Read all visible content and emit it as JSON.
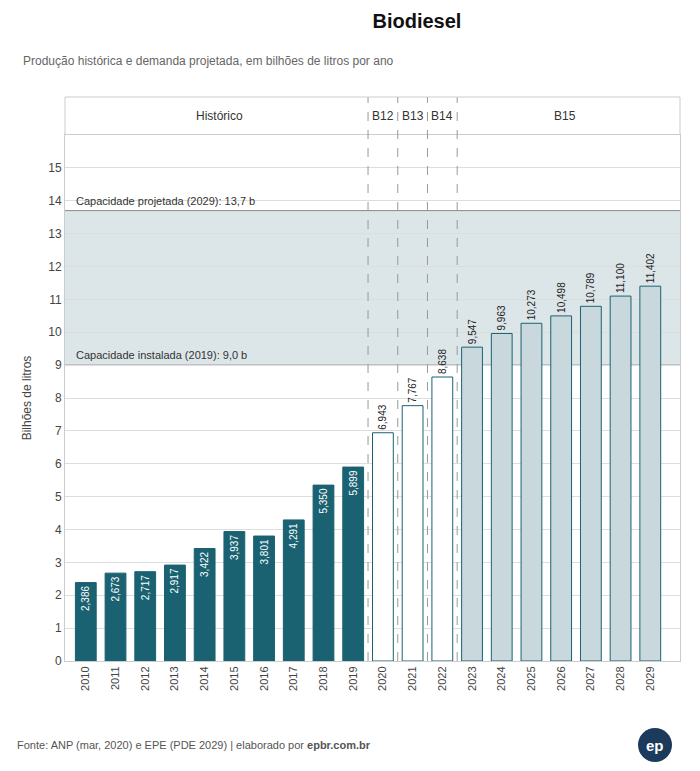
{
  "chart_data": {
    "type": "bar",
    "title": "Biodiesel",
    "subtitle": "Produção histórica e demanda projetada, em bilhões de litros por ano",
    "ylabel": "Bilhões de litros",
    "source": "Fonte: ANP (mar, 2020) e EPE (PDE 2029) | elaborado por ",
    "source_bold": "epbr.com.br",
    "logo_text": "ep",
    "x": [
      2010,
      2011,
      2012,
      2013,
      2014,
      2015,
      2016,
      2017,
      2018,
      2019,
      2020,
      2021,
      2022,
      2023,
      2024,
      2025,
      2026,
      2027,
      2028,
      2029
    ],
    "values": [
      2.386,
      2.673,
      2.717,
      2.917,
      3.422,
      3.937,
      3.801,
      4.291,
      5.35,
      5.899,
      6.943,
      7.767,
      8.638,
      9.547,
      9.963,
      10.273,
      10.498,
      10.789,
      11.1,
      11.402
    ],
    "value_labels": [
      "2,386",
      "2,673",
      "2,717",
      "2,917",
      "3,422",
      "3,937",
      "3,801",
      "4,291",
      "5,350",
      "5,899",
      "6,943",
      "7,767",
      "8,638",
      "9,547",
      "9,963",
      "10,273",
      "10,498",
      "10,789",
      "11,100",
      "11,402"
    ],
    "data_labels": true,
    "colors": [
      "#1a6272",
      "#1a6272",
      "#1a6272",
      "#1a6272",
      "#1a6272",
      "#1a6272",
      "#1a6272",
      "#1a6272",
      "#1a6272",
      "#1a6272",
      "#ffffff",
      "#ffffff",
      "#ffffff",
      "#c8d8dc",
      "#c8d8dc",
      "#c8d8dc",
      "#c8d8dc",
      "#c8d8dc",
      "#c8d8dc",
      "#c8d8dc"
    ],
    "xlim": [
      2009.3,
      2030.0
    ],
    "xticks": [
      2010,
      2011,
      2012,
      2013,
      2014,
      2015,
      2016,
      2017,
      2018,
      2019,
      2020,
      2021,
      2022,
      2023,
      2024,
      2025,
      2026,
      2027,
      2028,
      2029
    ],
    "ylim": [
      0,
      16
    ],
    "yticks": [
      0,
      1,
      2,
      3,
      4,
      5,
      6,
      7,
      8,
      9,
      10,
      11,
      12,
      13,
      14,
      15
    ],
    "grid": "y",
    "band": {
      "y0": 9.0,
      "y1": 13.7,
      "color": "#dce6e9"
    },
    "annotations": [
      {
        "text": "Capacidade instalada (2019): 9,0 b",
        "y": 9.0
      },
      {
        "text": "Capacidade projetada (2029): 13,7 b",
        "y": 13.7
      }
    ],
    "sections": [
      {
        "label": "Histórico",
        "x0": 2009.5,
        "x1": 2019.5
      },
      {
        "label": "B12",
        "x0": 2019.5,
        "x1": 2020.5
      },
      {
        "label": "B13",
        "x0": 2020.5,
        "x1": 2021.5
      },
      {
        "label": "B14",
        "x0": 2021.5,
        "x1": 2022.5
      },
      {
        "label": "B15",
        "x0": 2022.5,
        "x1": 2029.75
      }
    ]
  }
}
